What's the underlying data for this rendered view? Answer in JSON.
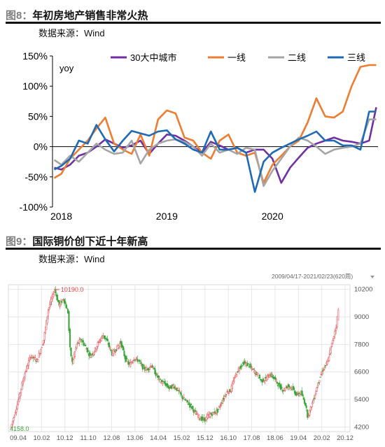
{
  "figures": [
    {
      "number": "图8：",
      "title": "年初房地产销售非常火热",
      "source": "数据来源：Wind"
    },
    {
      "number": "图9：",
      "title": "国际铜价创下近十年新高",
      "source": "数据来源：Wind"
    }
  ],
  "chart_data": [
    {
      "type": "line",
      "ylabel": "yoy",
      "ylim": [
        -100,
        150
      ],
      "y_ticks": [
        "150%",
        "100%",
        "50%",
        "0%",
        "-50%",
        "-100%"
      ],
      "y_tick_values": [
        150,
        100,
        50,
        0,
        -50,
        -100
      ],
      "x_ticks": [
        "2018",
        "2019",
        "2020"
      ],
      "x_tick_positions": [
        0,
        12,
        24
      ],
      "x_range": [
        -1,
        36
      ],
      "legend_position": "top",
      "grid": false,
      "series": [
        {
          "name": "30大中城市",
          "color": "#7030a0",
          "x": [
            -0.8,
            0,
            1,
            2,
            3,
            4,
            5,
            6,
            7,
            8,
            9,
            10,
            11,
            12,
            13,
            14,
            15,
            16,
            17,
            18,
            19,
            20,
            21,
            22,
            23,
            24,
            25,
            26,
            27,
            28,
            29,
            30,
            31,
            32,
            33,
            34,
            35,
            35.8
          ],
          "values": [
            -35,
            -38,
            -30,
            -15,
            -10,
            0,
            12,
            5,
            -2,
            2,
            10,
            -12,
            5,
            20,
            18,
            10,
            0,
            -10,
            8,
            2,
            -5,
            -2,
            -10,
            -5,
            -5,
            -20,
            -60,
            -35,
            -18,
            -2,
            5,
            10,
            15,
            10,
            8,
            5,
            10,
            65
          ]
        },
        {
          "name": "一线",
          "color": "#ed7d31",
          "x": [
            -0.8,
            0,
            1,
            2,
            3,
            4,
            5,
            6,
            7,
            8,
            9,
            10,
            11,
            12,
            13,
            14,
            15,
            16,
            17,
            18,
            19,
            20,
            21,
            22,
            23,
            24,
            25,
            26,
            27,
            28,
            29,
            30,
            31,
            32,
            33,
            34,
            35,
            35.8
          ],
          "values": [
            -52,
            -45,
            -20,
            -5,
            10,
            30,
            48,
            5,
            -5,
            -12,
            20,
            -15,
            45,
            60,
            55,
            15,
            10,
            -10,
            -20,
            10,
            20,
            -10,
            -15,
            -10,
            -60,
            -30,
            -15,
            0,
            10,
            40,
            80,
            50,
            48,
            58,
            100,
            132,
            135,
            135
          ]
        },
        {
          "name": "二线",
          "color": "#a5a5a5",
          "x": [
            -0.8,
            0,
            1,
            2,
            3,
            4,
            5,
            6,
            7,
            8,
            9,
            10,
            11,
            12,
            13,
            14,
            15,
            16,
            17,
            18,
            19,
            20,
            21,
            22,
            23,
            24,
            25,
            26,
            27,
            28,
            29,
            30,
            31,
            32,
            33,
            34,
            35,
            35.8
          ],
          "values": [
            -22,
            -30,
            -15,
            -25,
            -10,
            5,
            -5,
            -12,
            -10,
            10,
            -28,
            -5,
            5,
            10,
            12,
            8,
            0,
            -15,
            5,
            -10,
            -5,
            -12,
            -2,
            -5,
            -65,
            -40,
            -20,
            0,
            15,
            10,
            0,
            -12,
            -5,
            -2,
            0,
            5,
            45,
            45
          ]
        },
        {
          "name": "三线",
          "color": "#1f6ab5",
          "x": [
            -0.8,
            0,
            1,
            2,
            3,
            4,
            5,
            6,
            7,
            8,
            9,
            10,
            11,
            12,
            13,
            14,
            15,
            16,
            17,
            18,
            19,
            20,
            21,
            22,
            23,
            24,
            25,
            26,
            27,
            28,
            29,
            30,
            31,
            32,
            33,
            34,
            35,
            35.8
          ],
          "values": [
            -38,
            -32,
            -20,
            10,
            5,
            36,
            12,
            -8,
            10,
            26,
            22,
            18,
            25,
            27,
            12,
            5,
            -5,
            -10,
            25,
            -5,
            -5,
            -2,
            -10,
            -75,
            -25,
            -10,
            -2,
            5,
            12,
            18,
            25,
            10,
            10,
            2,
            2,
            -5,
            58,
            58
          ]
        }
      ]
    },
    {
      "type": "candlestick",
      "date_range_label": "2009/04/17-2021/02/23(620周)",
      "y_ticks": [
        "10200",
        "9000",
        "7800",
        "6600",
        "5400",
        "4200"
      ],
      "y_tick_values": [
        10200,
        9000,
        7800,
        6600,
        5400,
        4200
      ],
      "x_ticks": [
        "09.04",
        "10.02",
        "10.12",
        "11.10",
        "12.08",
        "13.06",
        "14.04",
        "15.02",
        "15.12",
        "16.10",
        "17.08",
        "18.06",
        "19.04",
        "20.02",
        "20.12"
      ],
      "max_label": "10190.0",
      "min_label": "4158.0",
      "close_path": [
        [
          0,
          4160
        ],
        [
          3,
          5200
        ],
        [
          6,
          6400
        ],
        [
          9,
          7300
        ],
        [
          12,
          7100
        ],
        [
          15,
          8000
        ],
        [
          17,
          9300
        ],
        [
          19,
          9900
        ],
        [
          20,
          10190
        ],
        [
          22,
          9500
        ],
        [
          24,
          9800
        ],
        [
          26,
          9200
        ],
        [
          27,
          7600
        ],
        [
          28,
          7000
        ],
        [
          30,
          7800
        ],
        [
          32,
          8000
        ],
        [
          34,
          7700
        ],
        [
          36,
          7300
        ],
        [
          38,
          7500
        ],
        [
          40,
          7900
        ],
        [
          42,
          8200
        ],
        [
          44,
          7900
        ],
        [
          46,
          7400
        ],
        [
          48,
          7600
        ],
        [
          50,
          7900
        ],
        [
          52,
          7200
        ],
        [
          54,
          6900
        ],
        [
          56,
          7200
        ],
        [
          58,
          7100
        ],
        [
          60,
          6800
        ],
        [
          62,
          6700
        ],
        [
          64,
          6900
        ],
        [
          66,
          6500
        ],
        [
          68,
          6200
        ],
        [
          70,
          6100
        ],
        [
          72,
          5900
        ],
        [
          74,
          6000
        ],
        [
          76,
          5800
        ],
        [
          78,
          5500
        ],
        [
          80,
          5300
        ],
        [
          82,
          5100
        ],
        [
          84,
          4800
        ],
        [
          86,
          4600
        ],
        [
          88,
          4500
        ],
        [
          90,
          4700
        ],
        [
          92,
          4800
        ],
        [
          94,
          4900
        ],
        [
          96,
          5300
        ],
        [
          98,
          5700
        ],
        [
          100,
          5800
        ],
        [
          102,
          6400
        ],
        [
          104,
          6800
        ],
        [
          106,
          7000
        ],
        [
          108,
          6900
        ],
        [
          110,
          6700
        ],
        [
          112,
          6500
        ],
        [
          114,
          6200
        ],
        [
          116,
          6300
        ],
        [
          118,
          6500
        ],
        [
          120,
          6300
        ],
        [
          122,
          6000
        ],
        [
          124,
          5800
        ],
        [
          126,
          6000
        ],
        [
          128,
          5900
        ],
        [
          130,
          5600
        ],
        [
          132,
          5700
        ],
        [
          134,
          5200
        ],
        [
          135,
          4700
        ],
        [
          136,
          4900
        ],
        [
          138,
          5500
        ],
        [
          140,
          6200
        ],
        [
          142,
          6700
        ],
        [
          144,
          7000
        ],
        [
          146,
          7800
        ],
        [
          147,
          8200
        ],
        [
          148,
          8600
        ],
        [
          149,
          9300
        ]
      ]
    }
  ]
}
